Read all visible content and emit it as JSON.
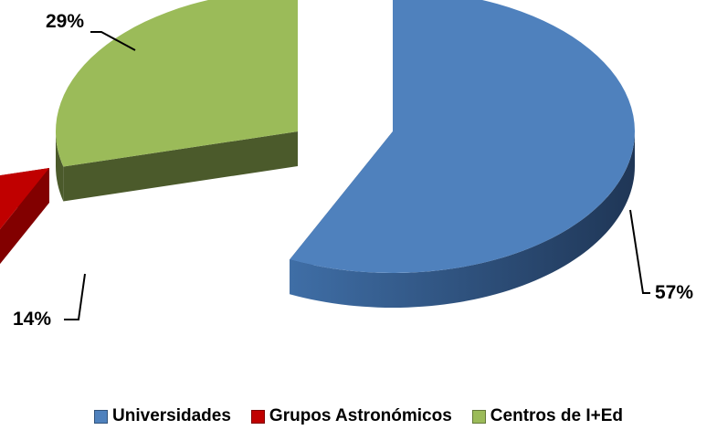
{
  "chart_data": {
    "type": "pie",
    "title": "",
    "slices": [
      {
        "label": "Universidades",
        "value": 57,
        "value_label": "57%",
        "color": "#4f81bd"
      },
      {
        "label": "Grupos Astronómicos",
        "value": 14,
        "value_label": "14%",
        "color": "#c00000"
      },
      {
        "label": "Centros de I+Ed",
        "value": 29,
        "value_label": "29%",
        "color": "#9bbb59"
      }
    ],
    "style": "3d-exploded",
    "legend_position": "bottom"
  }
}
